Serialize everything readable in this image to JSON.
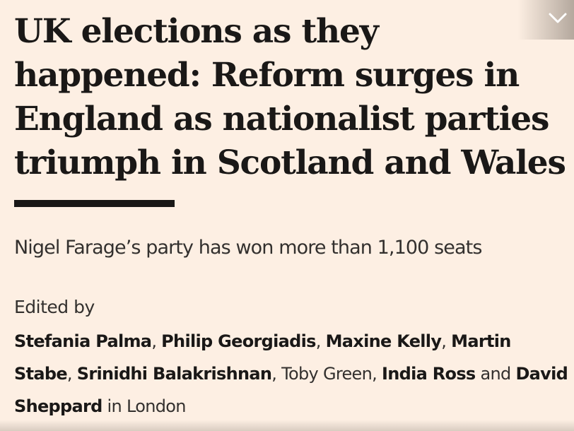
{
  "article": {
    "headline": "UK elections as they happened: Reform surges in England as nationalist parties triumph in Scotland and Wales",
    "standfirst": "Nigel Farage’s party has won more than 1,100 seats",
    "byline": {
      "label": "Edited by",
      "authors": [
        "Stefania Palma",
        "Philip Georgiadis",
        "Maxine Kelly",
        "Martin Stabe",
        "Srinidhi Balakrishnan",
        "Toby Green",
        "India Ross",
        "David Sheppard"
      ],
      "separators": [
        ", ",
        ", ",
        ", ",
        ", ",
        ", ",
        ", ",
        " and ",
        " in "
      ],
      "location": "London"
    }
  },
  "icons": {
    "collapse": "chevron-down-icon"
  },
  "colors": {
    "background": "#fdefe3",
    "text": "#1a1817",
    "muted_text": "#33302e"
  }
}
